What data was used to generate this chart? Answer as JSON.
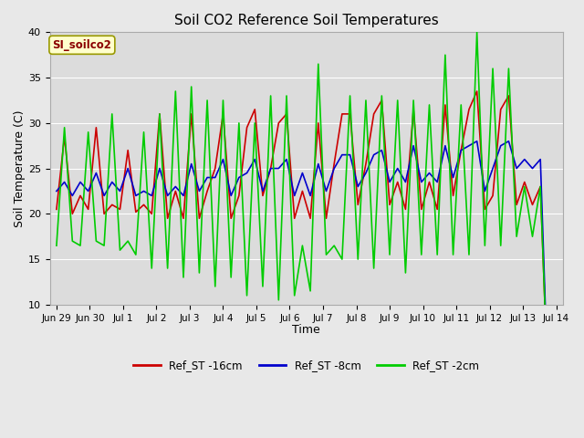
{
  "title": "Soil CO2 Reference Soil Temperatures",
  "xlabel": "Time",
  "ylabel": "Soil Temperature (C)",
  "ylim": [
    10,
    40
  ],
  "yticks": [
    10,
    15,
    20,
    25,
    30,
    35,
    40
  ],
  "fig_bg": "#e8e8e8",
  "plot_bg": "#dcdcdc",
  "legend_label": "SI_soilco2",
  "series_colors": {
    "Ref_ST -16cm": "#cc0000",
    "Ref_ST -8cm": "#0000cc",
    "Ref_ST -2cm": "#00cc00"
  },
  "x_tick_labels": [
    "Jun 29",
    "Jun 30",
    "Jul 1",
    "Jul 2",
    "Jul 3",
    "Jul 4",
    "Jul 5",
    "Jul 6",
    "Jul 7",
    "Jul 8",
    "Jul 9",
    "Jul 10",
    "Jul 11",
    "Jul 12",
    "Jul 13",
    "Jul 14"
  ],
  "n_days": 16,
  "ref16": [
    20.5,
    28.5,
    20.0,
    22.0,
    20.5,
    29.5,
    20.0,
    21.0,
    20.5,
    27.0,
    20.2,
    21.0,
    20.0,
    31.0,
    19.5,
    22.5,
    19.5,
    31.0,
    19.5,
    22.5,
    25.0,
    31.0,
    19.5,
    22.0,
    29.5,
    31.5,
    22.0,
    25.0,
    30.0,
    31.0,
    19.5,
    22.5,
    19.5,
    30.0,
    19.5,
    25.5,
    31.0,
    31.0,
    21.0,
    25.5,
    31.0,
    32.5,
    21.0,
    23.5,
    20.5,
    31.5,
    20.5,
    23.5,
    20.5,
    32.0,
    22.0,
    27.0,
    31.5,
    33.5,
    20.5,
    22.0,
    31.5,
    33.0,
    21.0,
    23.5,
    21.0,
    23.0,
    0,
    0
  ],
  "ref8": [
    22.5,
    23.5,
    22.0,
    23.5,
    22.5,
    24.5,
    22.0,
    23.5,
    22.5,
    25.0,
    22.0,
    22.5,
    22.0,
    25.0,
    22.0,
    23.0,
    22.0,
    25.5,
    22.5,
    24.0,
    24.0,
    26.0,
    22.0,
    24.0,
    24.5,
    26.0,
    22.5,
    25.0,
    25.0,
    26.0,
    22.0,
    24.5,
    22.0,
    25.5,
    22.5,
    25.0,
    26.5,
    26.5,
    23.0,
    24.5,
    26.5,
    27.0,
    23.5,
    25.0,
    23.5,
    27.5,
    23.5,
    24.5,
    23.5,
    27.5,
    24.0,
    27.0,
    27.5,
    28.0,
    22.5,
    25.0,
    27.5,
    28.0,
    25.0,
    26.0,
    25.0,
    26.0,
    0,
    0
  ],
  "ref2": [
    16.5,
    29.5,
    17.0,
    16.5,
    29.0,
    17.0,
    16.5,
    31.0,
    16.0,
    17.0,
    15.5,
    29.0,
    14.0,
    31.0,
    14.0,
    33.5,
    13.0,
    34.0,
    13.5,
    32.5,
    12.0,
    32.5,
    13.0,
    30.0,
    11.0,
    30.0,
    12.0,
    33.0,
    10.5,
    33.0,
    11.0,
    16.5,
    11.5,
    36.5,
    15.5,
    16.5,
    15.0,
    33.0,
    15.0,
    32.5,
    14.0,
    33.0,
    15.5,
    32.5,
    13.5,
    32.5,
    15.5,
    32.0,
    15.5,
    37.5,
    15.5,
    32.0,
    15.5,
    40.0,
    16.5,
    36.0,
    16.5,
    36.0,
    17.5,
    23.0,
    17.5,
    23.0,
    0,
    0
  ]
}
